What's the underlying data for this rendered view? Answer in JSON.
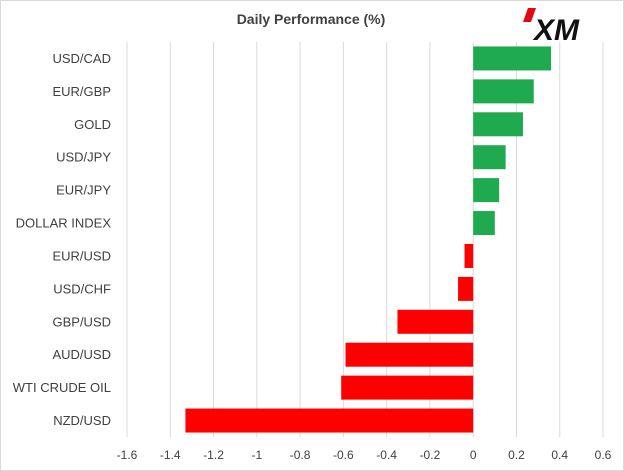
{
  "brand": {
    "logo_text": "XM",
    "logo_accent_color": "#e30613",
    "logo_color": "#111111"
  },
  "chart_data": {
    "type": "bar",
    "orientation": "horizontal",
    "title": "Daily Performance (%)",
    "xlabel": "",
    "ylabel": "",
    "xlim": [
      -1.6,
      0.6
    ],
    "xticks": [
      -1.6,
      -1.4,
      -1.2,
      -1,
      -0.8,
      -0.6,
      -0.4,
      -0.2,
      0,
      0.2,
      0.4,
      0.6
    ],
    "grid": "vertical",
    "legend": "none",
    "categories": [
      "USD/CAD",
      "EUR/GBP",
      "GOLD",
      "USD/JPY",
      "EUR/JPY",
      "DOLLAR INDEX",
      "EUR/USD",
      "USD/CHF",
      "GBP/USD",
      "AUD/USD",
      "WTI CRUDE OIL",
      "NZD/USD"
    ],
    "values": [
      0.36,
      0.28,
      0.23,
      0.15,
      0.12,
      0.1,
      -0.04,
      -0.07,
      -0.35,
      -0.59,
      -0.61,
      -1.33
    ],
    "positive_color": "#1faa50",
    "negative_color": "#ff0000"
  }
}
